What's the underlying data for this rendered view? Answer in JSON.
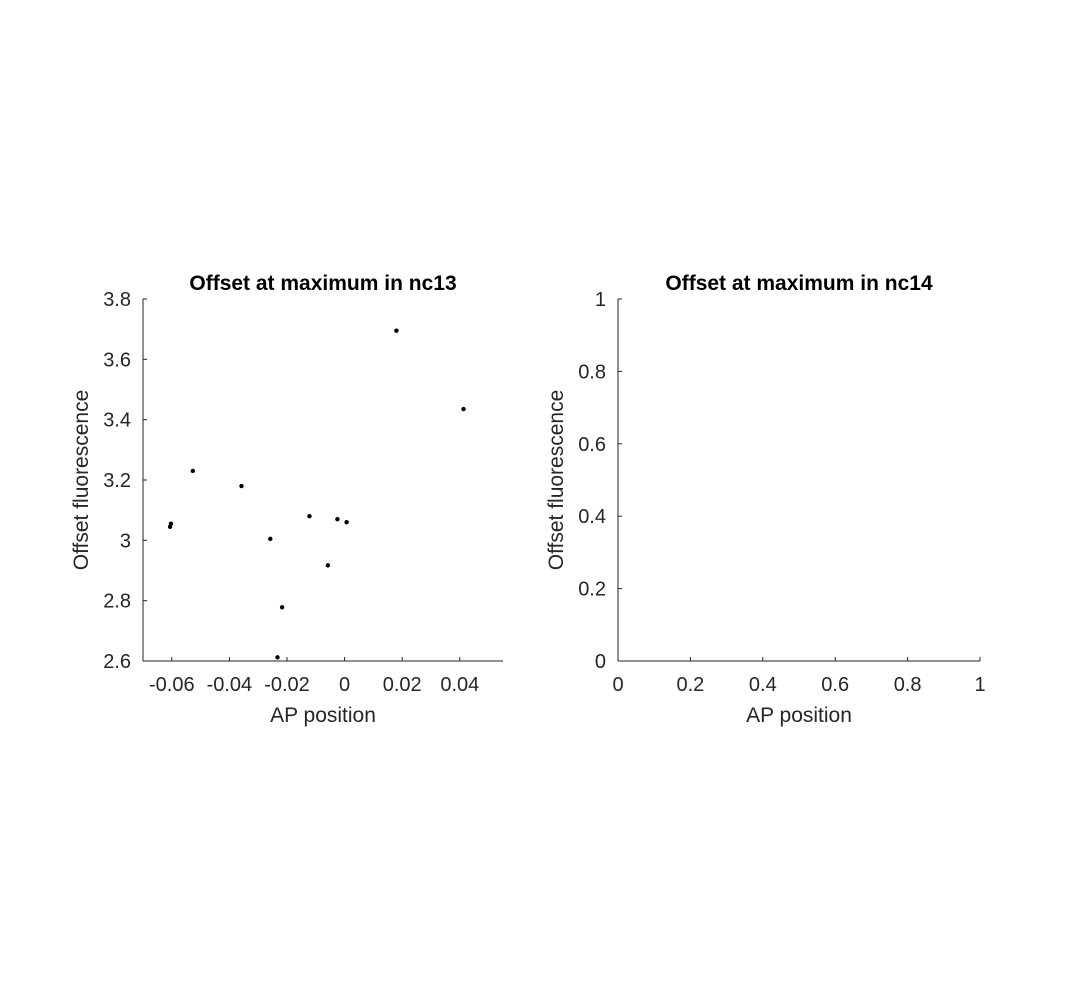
{
  "chart_data": [
    {
      "type": "scatter",
      "title": "Offset at maximum in nc13",
      "xlabel": "AP position",
      "ylabel": "Offset fluorescence",
      "xlim": [
        -0.07,
        0.055
      ],
      "ylim": [
        2.6,
        3.8
      ],
      "xticks": [
        -0.06,
        -0.04,
        -0.02,
        0,
        0.02,
        0.04
      ],
      "xtick_labels": [
        "-0.06",
        "-0.04",
        "-0.02",
        "0",
        "0.02",
        "0.04"
      ],
      "yticks": [
        2.6,
        2.8,
        3.0,
        3.2,
        3.4,
        3.6,
        3.8
      ],
      "ytick_labels": [
        "2.6",
        "2.8",
        "3",
        "3.2",
        "3.4",
        "3.6",
        "3.8"
      ],
      "grid": false,
      "marker_color": "#000000",
      "series": [
        {
          "points": [
            {
              "x": -0.0603,
              "y": 3.055
            },
            {
              "x": -0.0606,
              "y": 3.045
            },
            {
              "x": -0.0527,
              "y": 3.23
            },
            {
              "x": -0.0358,
              "y": 3.18
            },
            {
              "x": -0.0258,
              "y": 3.005
            },
            {
              "x": -0.0233,
              "y": 2.612
            },
            {
              "x": -0.0217,
              "y": 2.778
            },
            {
              "x": -0.0122,
              "y": 3.08
            },
            {
              "x": -0.0058,
              "y": 2.917
            },
            {
              "x": -0.0025,
              "y": 3.07
            },
            {
              "x": 0.0007,
              "y": 3.06
            },
            {
              "x": 0.018,
              "y": 3.695
            },
            {
              "x": 0.0413,
              "y": 3.435
            }
          ]
        }
      ]
    },
    {
      "type": "scatter",
      "title": "Offset at maximum in nc14",
      "xlabel": "AP position",
      "ylabel": "Offset fluorescence",
      "xlim": [
        0,
        1
      ],
      "ylim": [
        0,
        1
      ],
      "xticks": [
        0,
        0.2,
        0.4,
        0.6,
        0.8,
        1
      ],
      "xtick_labels": [
        "0",
        "0.2",
        "0.4",
        "0.6",
        "0.8",
        "1"
      ],
      "yticks": [
        0,
        0.2,
        0.4,
        0.6,
        0.8,
        1
      ],
      "ytick_labels": [
        "0",
        "0.2",
        "0.4",
        "0.6",
        "0.8",
        "1"
      ],
      "grid": false,
      "marker_color": "#000000",
      "series": []
    }
  ]
}
